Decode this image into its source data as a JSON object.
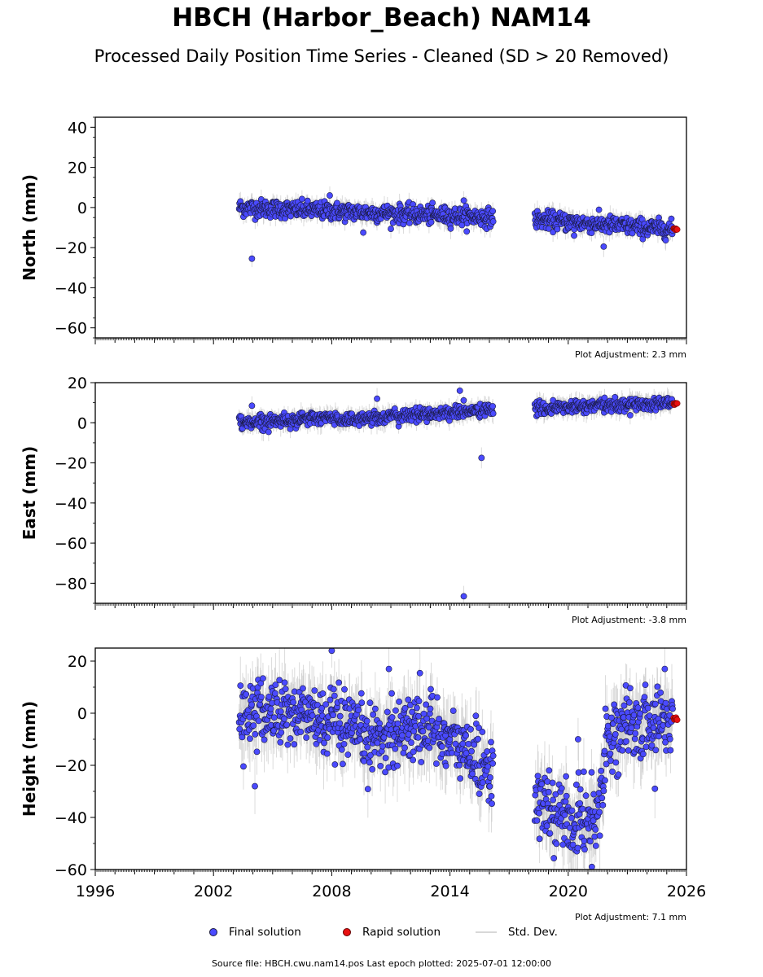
{
  "title": "HBCH (Harbor_Beach) NAM14",
  "subtitle": "Processed Daily Position Time Series - Cleaned (SD > 20 Removed)",
  "source_line": "Source file: HBCH.cwu.nam14.pos  Last epoch plotted: 2025-07-01 12:00:00",
  "legend": {
    "final": "Final solution",
    "rapid": "Rapid solution",
    "std": "Std. Dev."
  },
  "colors": {
    "final": "#4a4aff",
    "rapid": "#e81010",
    "std": "#bdbdbd",
    "marker_edge": "#1a1a40"
  },
  "chart_data": [
    {
      "type": "scatter",
      "ylabel": "North (mm)",
      "adjustment": "Plot Adjustment: 2.3 mm",
      "xlim": [
        1996,
        2026
      ],
      "ylim": [
        -65,
        45
      ],
      "yticks": [
        40,
        20,
        0,
        -20,
        -40,
        -60
      ],
      "show_xticklabels": false,
      "gaps": [
        [
          2016.2,
          2018.3
        ]
      ],
      "series_final": {
        "start": 2003.3,
        "end": 2025.3,
        "trend": [
          [
            2003.3,
            0
          ],
          [
            2016.2,
            -5
          ],
          [
            2018.3,
            -6
          ],
          [
            2025.3,
            -11
          ]
        ],
        "scatter": 2.2,
        "sd": 3
      },
      "series_rapid": {
        "start": 2025.35,
        "end": 2025.55,
        "value": -11
      },
      "outliers": [
        [
          2003.95,
          -25.5
        ],
        [
          2009.6,
          -12.5
        ],
        [
          2020.3,
          -14
        ],
        [
          2021.8,
          -19.5
        ],
        [
          2014.7,
          3.5
        ],
        [
          2007.9,
          6
        ]
      ]
    },
    {
      "type": "scatter",
      "ylabel": "East (mm)",
      "adjustment": "Plot Adjustment: -3.8 mm",
      "xlim": [
        1996,
        2026
      ],
      "ylim": [
        -90,
        20
      ],
      "yticks": [
        20,
        0,
        -20,
        -40,
        -60,
        -80
      ],
      "show_xticklabels": false,
      "gaps": [
        [
          2016.2,
          2018.3
        ]
      ],
      "series_final": {
        "start": 2003.3,
        "end": 2025.3,
        "trend": [
          [
            2003.3,
            0
          ],
          [
            2007.8,
            2.5
          ],
          [
            2008.5,
            1.5
          ],
          [
            2016.2,
            6.5
          ],
          [
            2018.3,
            7
          ],
          [
            2025.3,
            10
          ]
        ],
        "scatter": 1.6,
        "sd": 3
      },
      "series_rapid": {
        "start": 2025.35,
        "end": 2025.55,
        "value": 9.5
      },
      "outliers": [
        [
          2014.7,
          -86.5
        ],
        [
          2015.6,
          -17.5
        ],
        [
          2014.5,
          16
        ],
        [
          2003.95,
          8.5
        ],
        [
          2010.3,
          12
        ]
      ]
    },
    {
      "type": "scatter",
      "ylabel": "Height (mm)",
      "adjustment": "Plot Adjustment: 7.1 mm",
      "xlim": [
        1996,
        2026
      ],
      "ylim": [
        -60,
        25
      ],
      "yticks": [
        20,
        0,
        -20,
        -40,
        -60
      ],
      "xticks": [
        1996,
        2002,
        2008,
        2014,
        2020,
        2026
      ],
      "show_xticklabels": true,
      "gaps": [
        [
          2016.2,
          2018.3
        ]
      ],
      "series_final": {
        "start": 2003.3,
        "end": 2025.3,
        "trend": [
          [
            2003.3,
            0
          ],
          [
            2006.5,
            0
          ],
          [
            2008,
            -5
          ],
          [
            2010,
            -10
          ],
          [
            2012,
            -5
          ],
          [
            2013,
            -5
          ],
          [
            2016.2,
            -22
          ],
          [
            2018.3,
            -35
          ],
          [
            2020.3,
            -42
          ],
          [
            2021.5,
            -38
          ],
          [
            2022.0,
            -8
          ],
          [
            2025.3,
            -2
          ]
        ],
        "scatter": 6.5,
        "sd": 8
      },
      "series_rapid": {
        "start": 2025.35,
        "end": 2025.55,
        "value": -2
      },
      "outliers": [
        [
          2008.0,
          24
        ],
        [
          2010.9,
          17
        ],
        [
          2024.9,
          17
        ],
        [
          2024.4,
          -29
        ],
        [
          2021.2,
          -59
        ],
        [
          2020.5,
          -10
        ],
        [
          2004.1,
          -28
        ]
      ]
    }
  ]
}
